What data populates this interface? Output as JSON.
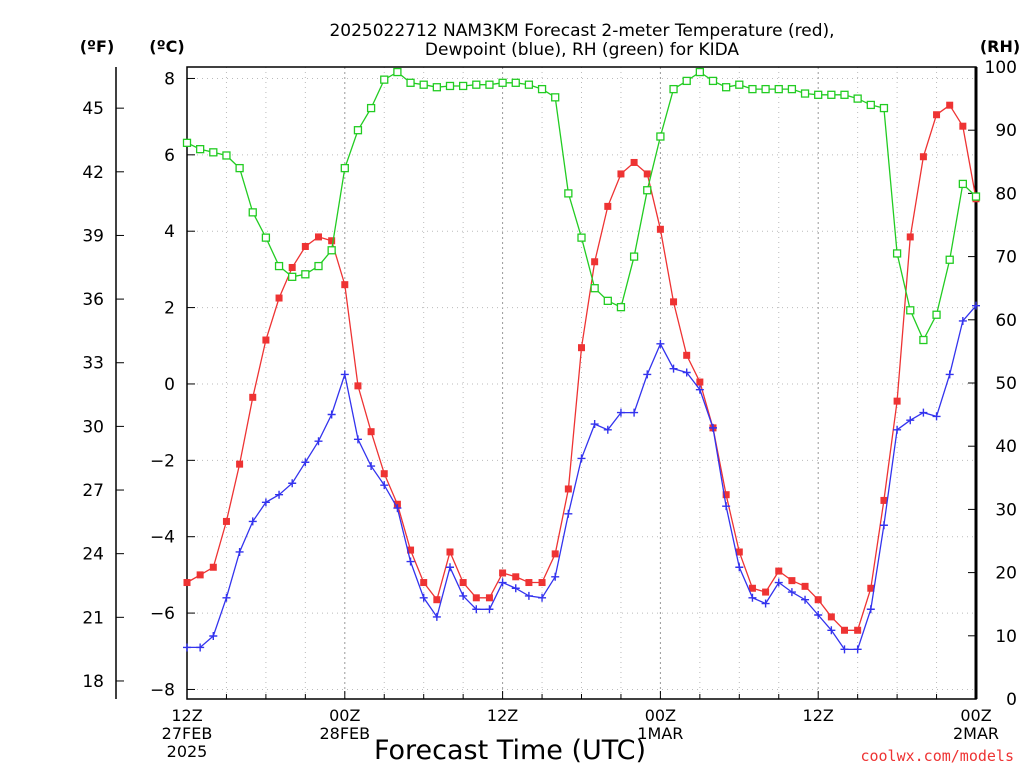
{
  "chart_data": {
    "type": "line",
    "title_line1": "2025022712 NAM3KM Forecast 2-meter Temperature (red),",
    "title_line2": "Dewpoint (blue), RH (green) for KIDA",
    "xlabel": "Forecast Time (UTC)",
    "left_outer_label": "(ºF)",
    "left_inner_label": "(ºC)",
    "right_label": "(RH)",
    "credit": "coolwx.com/models",
    "x_hour_range": [
      0,
      60
    ],
    "celsius_range": [
      -8.25,
      8.3
    ],
    "rh_range": [
      0,
      100
    ],
    "fahrenheit_ticks": [
      18,
      21,
      24,
      27,
      30,
      33,
      36,
      39,
      42,
      45
    ],
    "celsius_ticks": [
      -8,
      -6,
      -4,
      -2,
      0,
      2,
      4,
      6,
      8
    ],
    "rh_ticks": [
      0,
      10,
      20,
      30,
      40,
      50,
      60,
      70,
      80,
      90,
      100
    ],
    "x_ticks": [
      {
        "hour": 0,
        "line1": "12Z",
        "line2": "27FEB",
        "line3": "2025"
      },
      {
        "hour": 12,
        "line1": "00Z",
        "line2": "28FEB",
        "line3": ""
      },
      {
        "hour": 24,
        "line1": "12Z",
        "line2": "",
        "line3": ""
      },
      {
        "hour": 36,
        "line1": "00Z",
        "line2": "1MAR",
        "line3": ""
      },
      {
        "hour": 48,
        "line1": "12Z",
        "line2": "",
        "line3": ""
      },
      {
        "hour": 60,
        "line1": "00Z",
        "line2": "2MAR",
        "line3": ""
      }
    ],
    "series": [
      {
        "name": "Temperature",
        "color": "#ee3333",
        "axis": "celsius",
        "marker": "filled-square",
        "values": [
          -5.2,
          -5.0,
          -4.8,
          -3.6,
          -2.1,
          -0.35,
          1.15,
          2.25,
          3.05,
          3.6,
          3.85,
          3.75,
          2.6,
          -0.05,
          -1.25,
          -2.35,
          -3.15,
          -4.35,
          -5.2,
          -5.65,
          -4.4,
          -5.2,
          -5.6,
          -5.6,
          -4.95,
          -5.05,
          -5.2,
          -5.2,
          -4.45,
          -2.75,
          0.95,
          3.2,
          4.65,
          5.5,
          5.8,
          5.5,
          4.05,
          2.15,
          0.75,
          0.05,
          -1.15,
          -2.9,
          -4.4,
          -5.35,
          -5.45,
          -4.9,
          -5.15,
          -5.3,
          -5.65,
          -6.1,
          -6.45,
          -6.45,
          -5.35,
          -3.05,
          -0.45,
          3.85,
          5.95,
          7.05,
          7.3,
          6.75,
          4.85
        ]
      },
      {
        "name": "Dewpoint",
        "color": "#3333ee",
        "axis": "celsius",
        "marker": "plus",
        "values": [
          -6.9,
          -6.9,
          -6.6,
          -5.6,
          -4.4,
          -3.6,
          -3.1,
          -2.9,
          -2.6,
          -2.05,
          -1.5,
          -0.8,
          0.25,
          -1.45,
          -2.15,
          -2.65,
          -3.25,
          -4.65,
          -5.6,
          -6.1,
          -4.8,
          -5.55,
          -5.9,
          -5.9,
          -5.2,
          -5.35,
          -5.55,
          -5.6,
          -5.05,
          -3.4,
          -1.95,
          -1.05,
          -1.2,
          -0.75,
          -0.75,
          0.25,
          1.05,
          0.4,
          0.3,
          -0.15,
          -1.15,
          -3.2,
          -4.8,
          -5.6,
          -5.75,
          -5.2,
          -5.45,
          -5.65,
          -6.05,
          -6.45,
          -6.95,
          -6.95,
          -5.9,
          -3.7,
          -1.2,
          -0.95,
          -0.75,
          -0.85,
          0.25,
          1.65,
          2.05
        ]
      },
      {
        "name": "RH",
        "color": "#22cc22",
        "axis": "rh",
        "marker": "open-square",
        "values": [
          88,
          87,
          86.5,
          86,
          84,
          77,
          73,
          68.5,
          66.8,
          67.2,
          68.5,
          71,
          84,
          90,
          93.5,
          98,
          99.2,
          97.5,
          97.2,
          96.8,
          97,
          97,
          97.2,
          97.2,
          97.5,
          97.5,
          97.2,
          96.5,
          95.2,
          80,
          73,
          65,
          63,
          62,
          70,
          80.5,
          89,
          96.5,
          97.8,
          99.2,
          97.8,
          96.8,
          97.2,
          96.5,
          96.5,
          96.5,
          96.5,
          95.8,
          95.6,
          95.6,
          95.6,
          95,
          94,
          93.5,
          70.5,
          61.5,
          56.8,
          60.8,
          69.5,
          81.5,
          79.5
        ]
      }
    ]
  }
}
